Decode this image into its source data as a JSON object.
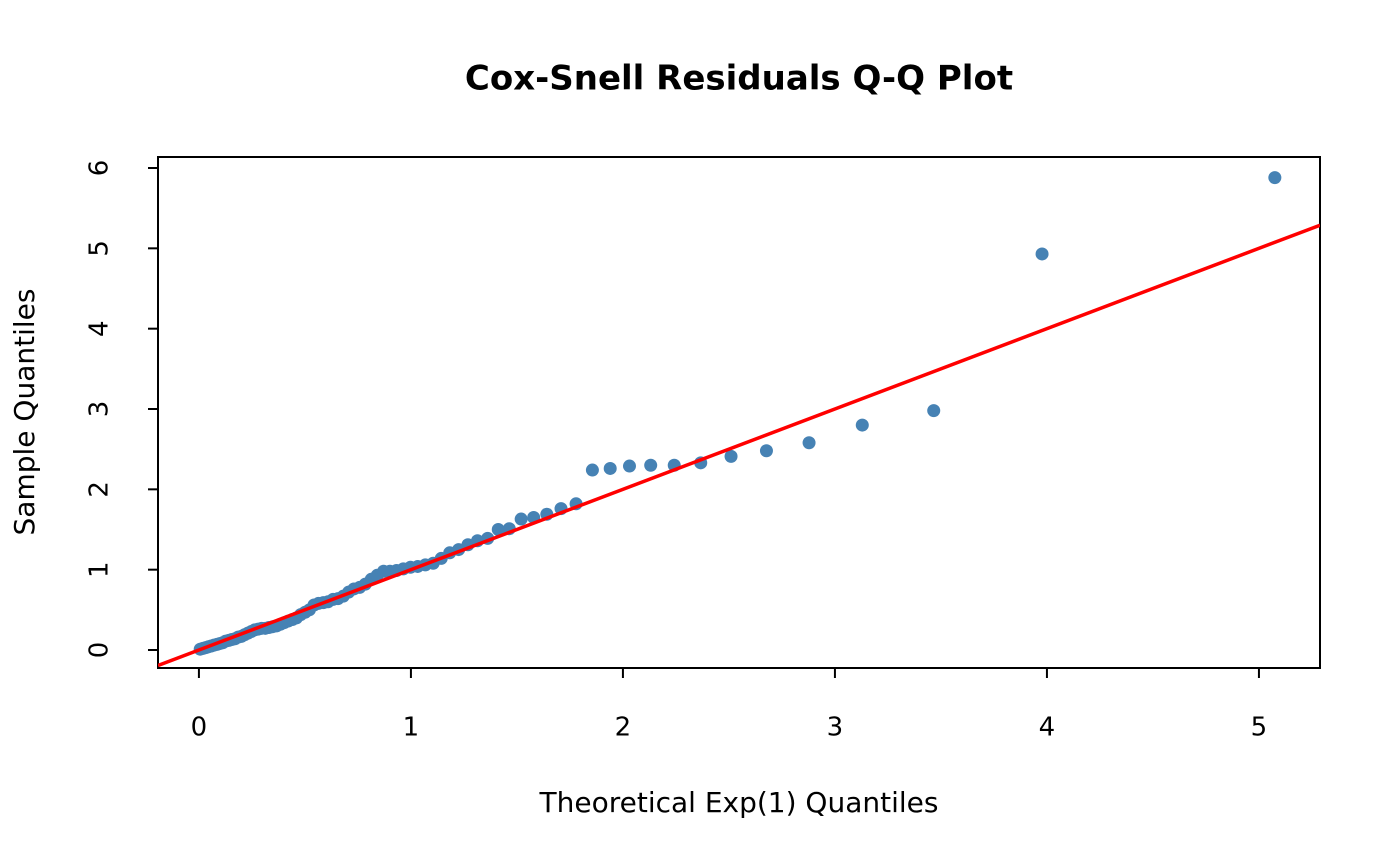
{
  "chart_data": {
    "type": "scatter",
    "title": "Cox-Snell Residuals Q-Q Plot",
    "x_label": "Theoretical Exp(1) Quantiles",
    "y_label": "Sample Quantiles",
    "color": "steelblue",
    "x": [
      0.006,
      0.019,
      0.032,
      0.045,
      0.058,
      0.071,
      0.085,
      0.098,
      0.112,
      0.126,
      0.141,
      0.155,
      0.17,
      0.185,
      0.2,
      0.215,
      0.231,
      0.247,
      0.263,
      0.279,
      0.296,
      0.313,
      0.33,
      0.348,
      0.366,
      0.384,
      0.402,
      0.421,
      0.441,
      0.46,
      0.48,
      0.501,
      0.521,
      0.543,
      0.564,
      0.587,
      0.609,
      0.633,
      0.656,
      0.681,
      0.706,
      0.731,
      0.758,
      0.785,
      0.813,
      0.841,
      0.871,
      0.901,
      0.932,
      0.964,
      0.998,
      1.032,
      1.068,
      1.105,
      1.143,
      1.183,
      1.225,
      1.269,
      1.314,
      1.362,
      1.412,
      1.464,
      1.52,
      1.579,
      1.641,
      1.708,
      1.779,
      1.856,
      1.94,
      2.031,
      2.131,
      2.242,
      2.367,
      2.51,
      2.677,
      2.878,
      3.129,
      3.466,
      3.977,
      5.075
    ],
    "values": [
      0.01,
      0.02,
      0.03,
      0.04,
      0.05,
      0.06,
      0.07,
      0.08,
      0.09,
      0.11,
      0.12,
      0.13,
      0.14,
      0.16,
      0.17,
      0.19,
      0.21,
      0.23,
      0.25,
      0.26,
      0.27,
      0.27,
      0.28,
      0.29,
      0.3,
      0.32,
      0.34,
      0.36,
      0.38,
      0.4,
      0.44,
      0.47,
      0.5,
      0.56,
      0.58,
      0.59,
      0.6,
      0.63,
      0.64,
      0.67,
      0.72,
      0.76,
      0.78,
      0.82,
      0.88,
      0.93,
      0.98,
      0.98,
      0.99,
      1.01,
      1.03,
      1.04,
      1.06,
      1.08,
      1.14,
      1.21,
      1.25,
      1.31,
      1.36,
      1.39,
      1.5,
      1.51,
      1.63,
      1.65,
      1.69,
      1.76,
      1.82,
      2.24,
      2.26,
      2.29,
      2.3,
      2.3,
      2.33,
      2.41,
      2.48,
      2.58,
      2.8,
      2.98,
      4.93,
      5.88
    ],
    "reference_line": {
      "intercept": 0,
      "slope": 1,
      "color": "red"
    },
    "xlim": [
      -0.193,
      5.288
    ],
    "ylim": [
      -0.224,
      6.137
    ],
    "xticks": [
      0,
      1,
      2,
      3,
      4,
      5
    ],
    "yticks": [
      0,
      1,
      2,
      3,
      4,
      5,
      6
    ]
  }
}
